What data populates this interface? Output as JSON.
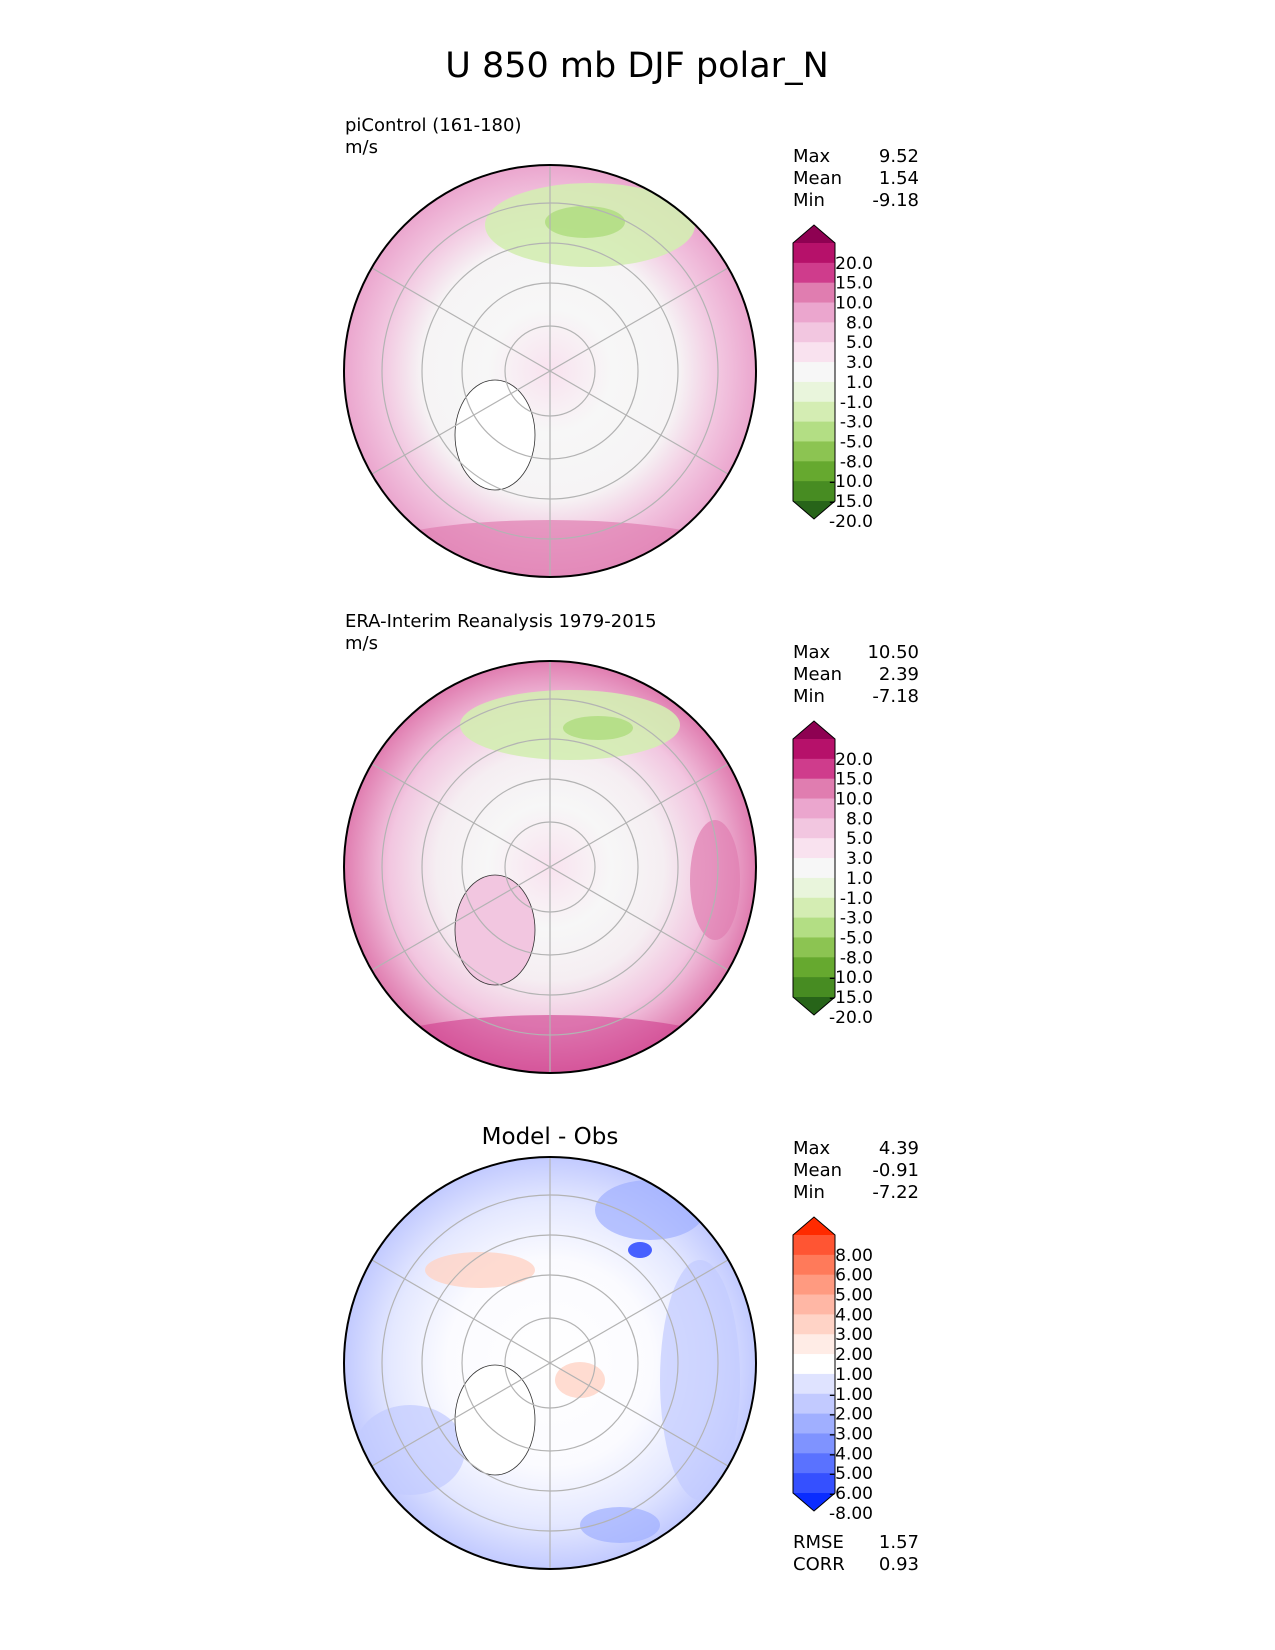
{
  "title": "U 850 mb DJF polar_N",
  "panels": [
    {
      "id": "model",
      "label_line1": "piControl (161-180)",
      "label_line2": "m/s",
      "stats": [
        {
          "key": "Max",
          "value": "9.52"
        },
        {
          "key": "Mean",
          "value": "1.54"
        },
        {
          "key": "Min",
          "value": "-9.18"
        }
      ],
      "colorbar": {
        "levels": [
          "20.0",
          "15.0",
          "10.0",
          "8.0",
          "5.0",
          "3.0",
          "1.0",
          "-1.0",
          "-3.0",
          "-5.0",
          "-8.0",
          "-10.0",
          "-15.0",
          "-20.0"
        ],
        "colors": [
          "#8e0152",
          "#b6116a",
          "#cf3c8c",
          "#e07db0",
          "#eba6ce",
          "#f2c6e0",
          "#f9e2ef",
          "#f7f7f7",
          "#e9f5dc",
          "#d4edb3",
          "#b3de84",
          "#8cc452",
          "#66a92f",
          "#478c22",
          "#276419"
        ]
      }
    },
    {
      "id": "obs",
      "label_line1": "ERA-Interim Reanalysis 1979-2015",
      "label_line2": "m/s",
      "stats": [
        {
          "key": "Max",
          "value": "10.50"
        },
        {
          "key": "Mean",
          "value": "2.39"
        },
        {
          "key": "Min",
          "value": "-7.18"
        }
      ],
      "colorbar": {
        "levels": [
          "20.0",
          "15.0",
          "10.0",
          "8.0",
          "5.0",
          "3.0",
          "1.0",
          "-1.0",
          "-3.0",
          "-5.0",
          "-8.0",
          "-10.0",
          "-15.0",
          "-20.0"
        ],
        "colors": [
          "#8e0152",
          "#b6116a",
          "#cf3c8c",
          "#e07db0",
          "#eba6ce",
          "#f2c6e0",
          "#f9e2ef",
          "#f7f7f7",
          "#e9f5dc",
          "#d4edb3",
          "#b3de84",
          "#8cc452",
          "#66a92f",
          "#478c22",
          "#276419"
        ]
      }
    },
    {
      "id": "diff",
      "heading": "Model - Obs",
      "stats": [
        {
          "key": "Max",
          "value": "4.39"
        },
        {
          "key": "Mean",
          "value": "-0.91"
        },
        {
          "key": "Min",
          "value": "-7.22"
        }
      ],
      "colorbar": {
        "levels": [
          "8.00",
          "6.00",
          "5.00",
          "4.00",
          "3.00",
          "2.00",
          "1.00",
          "-1.00",
          "-2.00",
          "-3.00",
          "-4.00",
          "-5.00",
          "-6.00",
          "-8.00"
        ],
        "colors": [
          "#ff2a00",
          "#ff5533",
          "#ff7a5a",
          "#ff9a80",
          "#ffb7a5",
          "#ffd3c6",
          "#ffece6",
          "#ffffff",
          "#dfe3ff",
          "#c2caff",
          "#a0afff",
          "#7f93ff",
          "#5a72ff",
          "#3550ff",
          "#0a2cff"
        ]
      },
      "metrics": [
        {
          "key": "RMSE",
          "value": "1.57"
        },
        {
          "key": "CORR",
          "value": "0.93"
        }
      ]
    }
  ],
  "chart_data": [
    {
      "type": "heatmap",
      "projection": "north polar stereographic",
      "title": "piControl (161-180)",
      "units": "m/s",
      "max": 9.52,
      "mean": 1.54,
      "min": -9.18
    },
    {
      "type": "heatmap",
      "projection": "north polar stereographic",
      "title": "ERA-Interim Reanalysis 1979-2015",
      "units": "m/s",
      "max": 10.5,
      "mean": 2.39,
      "min": -7.18
    },
    {
      "type": "heatmap",
      "projection": "north polar stereographic",
      "title": "Model - Obs",
      "max": 4.39,
      "mean": -0.91,
      "min": -7.22,
      "rmse": 1.57,
      "corr": 0.93
    }
  ]
}
